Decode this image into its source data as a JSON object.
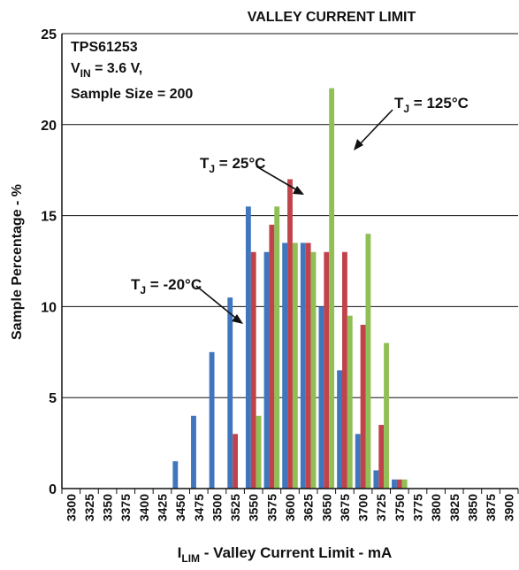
{
  "chart_data": {
    "type": "bar",
    "title": "VALLEY CURRENT LIMIT",
    "xlabel": {
      "main": "I",
      "sub": "LIM",
      "rest": " - Valley Current Limit - mA"
    },
    "ylabel": "Sample Percentage - %",
    "ylim": [
      0,
      25
    ],
    "yticks": [
      0,
      5,
      10,
      15,
      20,
      25
    ],
    "grid": true,
    "categories": [
      "3300",
      "3325",
      "3350",
      "3375",
      "3400",
      "3425",
      "3450",
      "3475",
      "3500",
      "3525",
      "3550",
      "3575",
      "3600",
      "3625",
      "3650",
      "3675",
      "3700",
      "3725",
      "3750",
      "3775",
      "3800",
      "3825",
      "3850",
      "3875",
      "3900"
    ],
    "series": [
      {
        "name": "T_J = -20°C",
        "color": "#3f76be",
        "values": [
          0,
          0,
          0,
          0,
          0,
          0,
          1.5,
          4,
          7.5,
          10.5,
          15.5,
          13,
          13.5,
          13.5,
          10,
          6.5,
          3,
          1,
          0.5,
          0,
          0,
          0,
          0,
          0,
          0
        ]
      },
      {
        "name": "T_J = 25°C",
        "color": "#c0434b",
        "values": [
          0,
          0,
          0,
          0,
          0,
          0,
          0,
          0,
          0,
          3,
          13,
          14.5,
          17,
          13.5,
          13,
          13,
          9,
          3.5,
          0.5,
          0,
          0,
          0,
          0,
          0,
          0
        ]
      },
      {
        "name": "T_J = 125°C",
        "color": "#8fbf55",
        "values": [
          0,
          0,
          0,
          0,
          0,
          0,
          0,
          0,
          0,
          0,
          4,
          15.5,
          13.5,
          13,
          22,
          9.5,
          14,
          8,
          0.5,
          0,
          0,
          0,
          0,
          0,
          0
        ]
      }
    ],
    "info_box": [
      {
        "main": "TPS61253"
      },
      {
        "main": "V",
        "sub": "IN",
        "rest": " = 3.6 V,"
      },
      {
        "main": "Sample Size = 200"
      }
    ],
    "annotations": [
      {
        "main": "T",
        "sub": "J",
        "rest": " = -20°C"
      },
      {
        "main": "T",
        "sub": "J",
        "rest": " = 25°C"
      },
      {
        "main": "T",
        "sub": "J",
        "rest": " = 125°C"
      }
    ]
  }
}
